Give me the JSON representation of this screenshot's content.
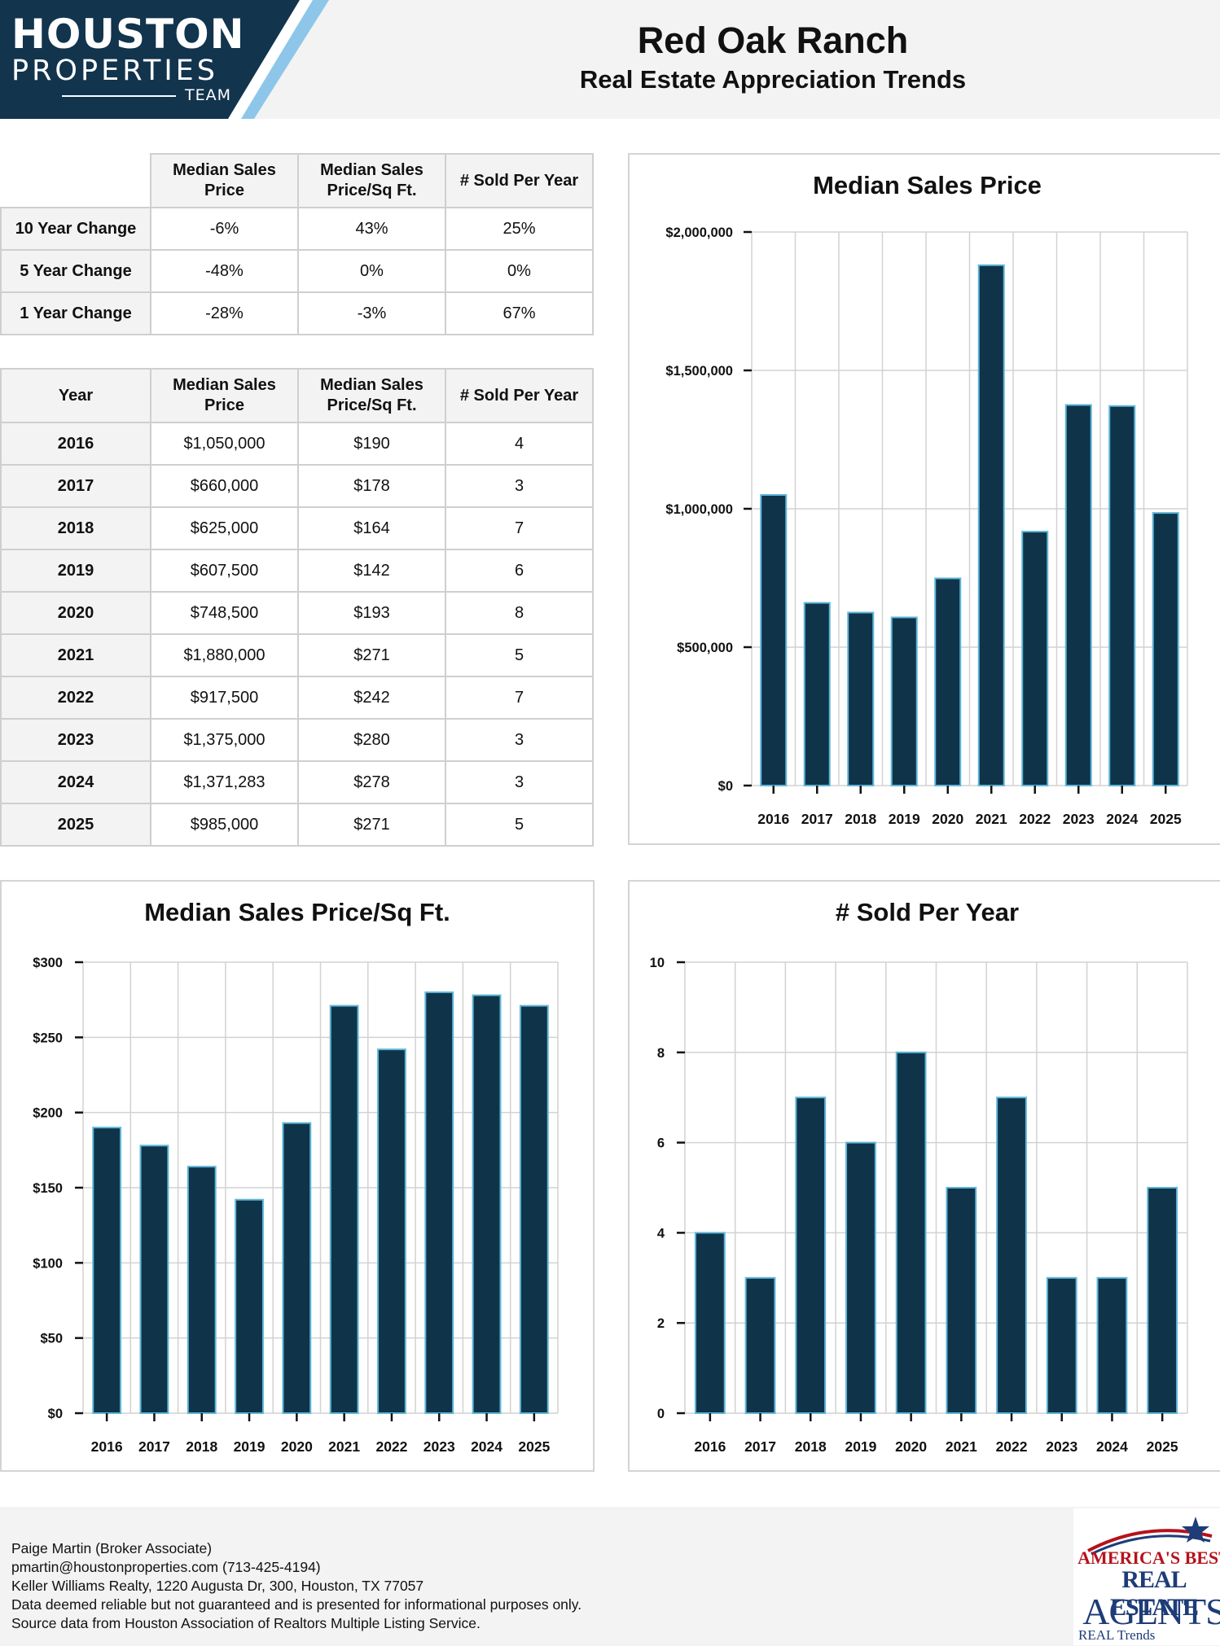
{
  "header": {
    "logo_line1": "HOUSTON",
    "logo_line2": "PROPERTIES",
    "logo_line3": "TEAM",
    "title": "Red Oak Ranch",
    "subtitle": "Real Estate Appreciation Trends"
  },
  "colors": {
    "bar_fill": "#0f344a",
    "bar_stroke": "#5fb6d8",
    "logo_dark": "#12344d",
    "logo_light": "#8ec6ea"
  },
  "change_table": {
    "headers": [
      "Median Sales Price",
      "Median Sales Price/Sq Ft.",
      "# Sold Per Year"
    ],
    "rows": [
      {
        "label": "10 Year Change",
        "values": [
          "-6%",
          "43%",
          "25%"
        ]
      },
      {
        "label": "5 Year Change",
        "values": [
          "-48%",
          "0%",
          "0%"
        ]
      },
      {
        "label": "1 Year Change",
        "values": [
          "-28%",
          "-3%",
          "67%"
        ]
      }
    ]
  },
  "year_table": {
    "headers": [
      "Year",
      "Median Sales Price",
      "Median Sales Price/Sq Ft.",
      "# Sold Per Year"
    ],
    "rows": [
      {
        "year": "2016",
        "price": "$1,050,000",
        "sqft": "$190",
        "sold": "4"
      },
      {
        "year": "2017",
        "price": "$660,000",
        "sqft": "$178",
        "sold": "3"
      },
      {
        "year": "2018",
        "price": "$625,000",
        "sqft": "$164",
        "sold": "7"
      },
      {
        "year": "2019",
        "price": "$607,500",
        "sqft": "$142",
        "sold": "6"
      },
      {
        "year": "2020",
        "price": "$748,500",
        "sqft": "$193",
        "sold": "8"
      },
      {
        "year": "2021",
        "price": "$1,880,000",
        "sqft": "$271",
        "sold": "5"
      },
      {
        "year": "2022",
        "price": "$917,500",
        "sqft": "$242",
        "sold": "7"
      },
      {
        "year": "2023",
        "price": "$1,375,000",
        "sqft": "$280",
        "sold": "3"
      },
      {
        "year": "2024",
        "price": "$1,371,283",
        "sqft": "$278",
        "sold": "3"
      },
      {
        "year": "2025",
        "price": "$985,000",
        "sqft": "$271",
        "sold": "5"
      }
    ]
  },
  "chart_data": [
    {
      "type": "bar",
      "title": "Median Sales Price",
      "categories": [
        "2016",
        "2017",
        "2018",
        "2019",
        "2020",
        "2021",
        "2022",
        "2023",
        "2024",
        "2025"
      ],
      "values": [
        1050000,
        660000,
        625000,
        607500,
        748500,
        1880000,
        917500,
        1375000,
        1371283,
        985000
      ],
      "ylim": [
        0,
        2000000
      ],
      "yticks": [
        0,
        500000,
        1000000,
        1500000,
        2000000
      ],
      "ytick_labels": [
        "$0",
        "$500,000",
        "$1,000,000",
        "$1,500,000",
        "$2,000,000"
      ],
      "xlabel": "",
      "ylabel": "",
      "grid": true
    },
    {
      "type": "bar",
      "title": "Median Sales Price/Sq Ft.",
      "categories": [
        "2016",
        "2017",
        "2018",
        "2019",
        "2020",
        "2021",
        "2022",
        "2023",
        "2024",
        "2025"
      ],
      "values": [
        190,
        178,
        164,
        142,
        193,
        271,
        242,
        280,
        278,
        271
      ],
      "ylim": [
        0,
        300
      ],
      "yticks": [
        0,
        50,
        100,
        150,
        200,
        250,
        300
      ],
      "ytick_labels": [
        "$0",
        "$50",
        "$100",
        "$150",
        "$200",
        "$250",
        "$300"
      ],
      "xlabel": "",
      "ylabel": "",
      "grid": true
    },
    {
      "type": "bar",
      "title": "# Sold Per Year",
      "categories": [
        "2016",
        "2017",
        "2018",
        "2019",
        "2020",
        "2021",
        "2022",
        "2023",
        "2024",
        "2025"
      ],
      "values": [
        4,
        3,
        7,
        6,
        8,
        5,
        7,
        3,
        3,
        5
      ],
      "ylim": [
        0,
        10
      ],
      "yticks": [
        0,
        2,
        4,
        6,
        8,
        10
      ],
      "ytick_labels": [
        "0",
        "2",
        "4",
        "6",
        "8",
        "10"
      ],
      "xlabel": "",
      "ylabel": "",
      "grid": true
    }
  ],
  "footer": {
    "lines": [
      "Paige Martin (Broker Associate)",
      "pmartin@houstonproperties.com (713-425-4194)",
      "Keller Williams Realty, 1220 Augusta Dr, 300, Houston, TX 77057",
      "Data deemed reliable but not guaranteed and is presented for informational purposes only.",
      "Source data from Houston Association of Realtors Multiple Listing Service."
    ],
    "badge": {
      "line1": "AMERICA'S BEST",
      "line2": "REAL ESTATE",
      "line3": "AGENTS",
      "line4": "REAL Trends"
    }
  }
}
